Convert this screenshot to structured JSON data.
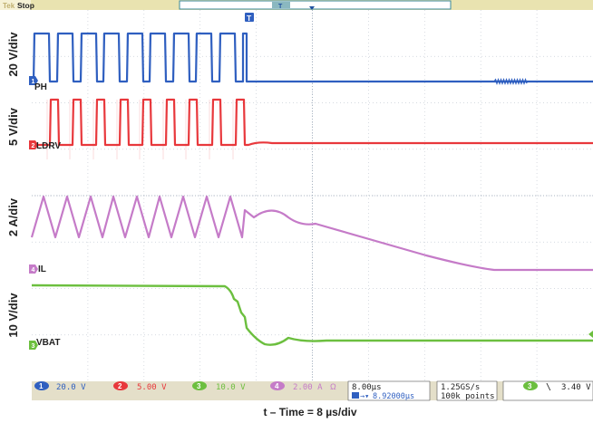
{
  "status": {
    "brand": "Tek",
    "run_state": "Stop",
    "trigger_marker": "T"
  },
  "channels": [
    {
      "number": "1",
      "name": "PH",
      "vdiv": "20 V/div",
      "scale": "20.0 V",
      "color": "#2f5fc0"
    },
    {
      "number": "2",
      "name": "LDRV",
      "vdiv": "5 V/div",
      "scale": "5.00 V",
      "color": "#e8383c"
    },
    {
      "number": "3",
      "name": "VBAT",
      "vdiv": "10 V/div",
      "scale": "10.0 V",
      "color": "#6cbf3f"
    },
    {
      "number": "4",
      "name": "IL",
      "vdiv": "2 A/div",
      "scale": "2.00 A",
      "color": "#c57bc8"
    }
  ],
  "ch4_suffix": "Ω",
  "timebase": {
    "scale": "8.00µs",
    "position": "8.92000µs",
    "sample_rate": "1.25GS/s",
    "record_length": "100k points"
  },
  "trigger": {
    "channel": "3",
    "slope": "\\",
    "level": "3.40 V"
  },
  "caption": "t – Time = 8 µs/div"
}
